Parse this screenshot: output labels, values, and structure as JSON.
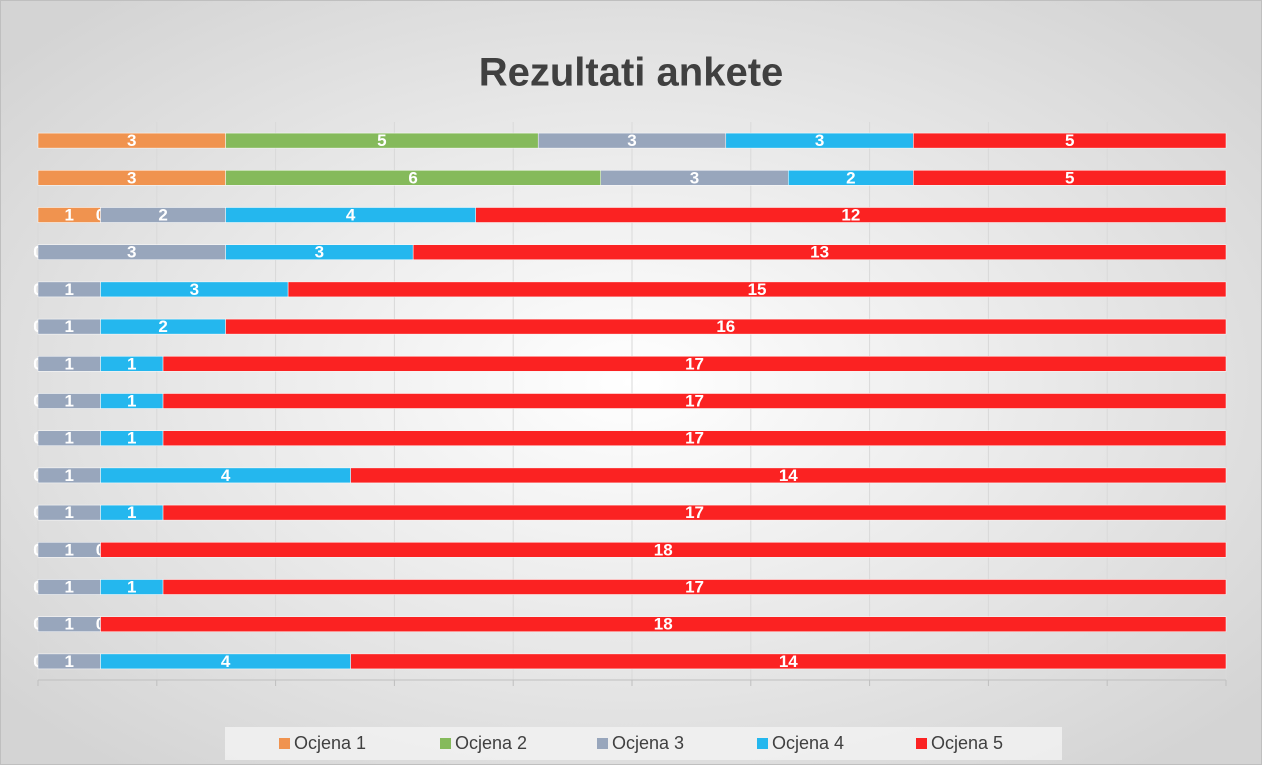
{
  "chart_data": {
    "type": "stacked_bar_100",
    "orientation": "horizontal",
    "title": "Rezultati ankete",
    "categories": [
      null,
      null,
      null,
      null,
      null,
      null,
      null,
      null,
      null,
      null,
      null,
      null,
      null,
      null,
      null
    ],
    "series": [
      {
        "name": "Ocjena 1",
        "color": "#f0934f",
        "values": [
          3,
          3,
          1,
          0,
          0,
          0,
          0,
          0,
          0,
          0,
          0,
          0,
          0,
          0,
          0
        ]
      },
      {
        "name": "Ocjena 2",
        "color": "#85ba5b",
        "values": [
          5,
          6,
          0,
          0,
          0,
          0,
          0,
          0,
          0,
          0,
          0,
          0,
          0,
          0,
          0
        ]
      },
      {
        "name": "Ocjena 3",
        "color": "#98a6bc",
        "values": [
          3,
          3,
          2,
          3,
          1,
          1,
          1,
          1,
          1,
          1,
          1,
          1,
          1,
          1,
          1
        ]
      },
      {
        "name": "Ocjena 4",
        "color": "#24b7ee",
        "values": [
          3,
          2,
          4,
          3,
          3,
          2,
          1,
          1,
          1,
          4,
          1,
          0,
          1,
          0,
          4
        ]
      },
      {
        "name": "Ocjena 5",
        "color": "#fb2222",
        "values": [
          5,
          5,
          12,
          13,
          15,
          16,
          17,
          17,
          17,
          14,
          17,
          18,
          17,
          18,
          14
        ]
      }
    ],
    "xlim": [
      0,
      100
    ],
    "xticks": [
      0,
      10,
      20,
      30,
      40,
      50,
      60,
      70,
      80,
      90,
      100
    ],
    "grid": true
  }
}
